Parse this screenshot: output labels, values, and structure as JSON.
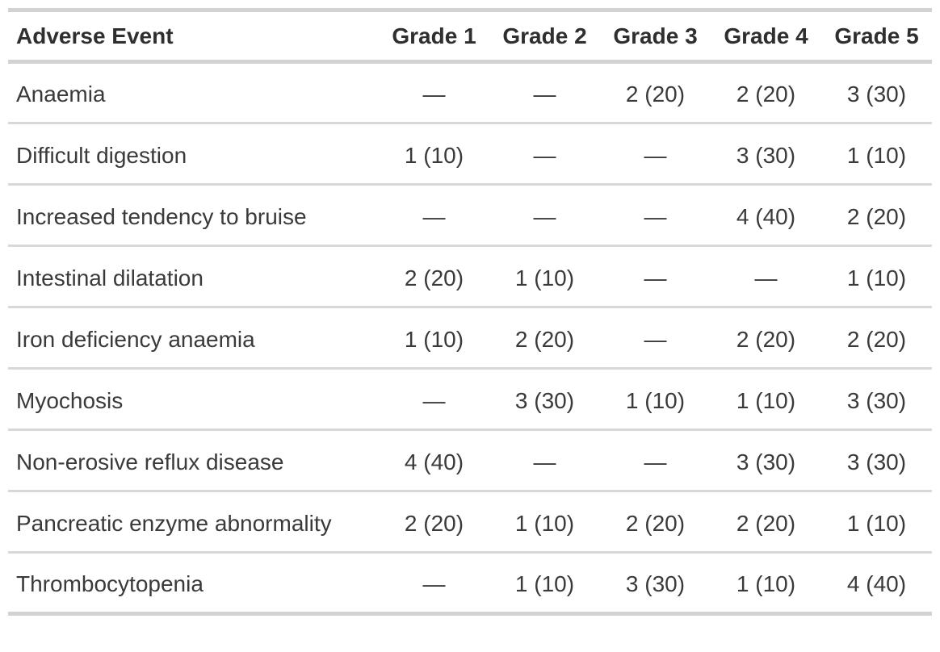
{
  "table": {
    "header": [
      "Adverse Event",
      "Grade 1",
      "Grade 2",
      "Grade 3",
      "Grade 4",
      "Grade 5"
    ],
    "rows": [
      {
        "event": "Anaemia",
        "values": [
          "—",
          "—",
          "2 (20)",
          "2 (20)",
          "3 (30)"
        ]
      },
      {
        "event": "Difficult digestion",
        "values": [
          "1 (10)",
          "—",
          "—",
          "3 (30)",
          "1 (10)"
        ]
      },
      {
        "event": "Increased tendency to bruise",
        "values": [
          "—",
          "—",
          "—",
          "4 (40)",
          "2 (20)"
        ]
      },
      {
        "event": "Intestinal dilatation",
        "values": [
          "2 (20)",
          "1 (10)",
          "—",
          "—",
          "1 (10)"
        ]
      },
      {
        "event": "Iron deficiency anaemia",
        "values": [
          "1 (10)",
          "2 (20)",
          "—",
          "2 (20)",
          "2 (20)"
        ]
      },
      {
        "event": "Myochosis",
        "values": [
          "—",
          "3 (30)",
          "1 (10)",
          "1 (10)",
          "3 (30)"
        ]
      },
      {
        "event": "Non-erosive reflux disease",
        "values": [
          "4 (40)",
          "—",
          "—",
          "3 (30)",
          "3 (30)"
        ]
      },
      {
        "event": "Pancreatic enzyme abnormality",
        "values": [
          "2 (20)",
          "1 (10)",
          "2 (20)",
          "2 (20)",
          "1 (10)"
        ]
      },
      {
        "event": "Thrombocytopenia",
        "values": [
          "—",
          "1 (10)",
          "3 (30)",
          "1 (10)",
          "4 (40)"
        ]
      }
    ],
    "empty_cell_symbol": "—"
  },
  "colors": {
    "heavy_border": "#d2d2d2",
    "row_border": "#d8d8d8",
    "header_text": "#2f2f2f",
    "body_text": "#3a3a3a",
    "background": "#ffffff"
  }
}
